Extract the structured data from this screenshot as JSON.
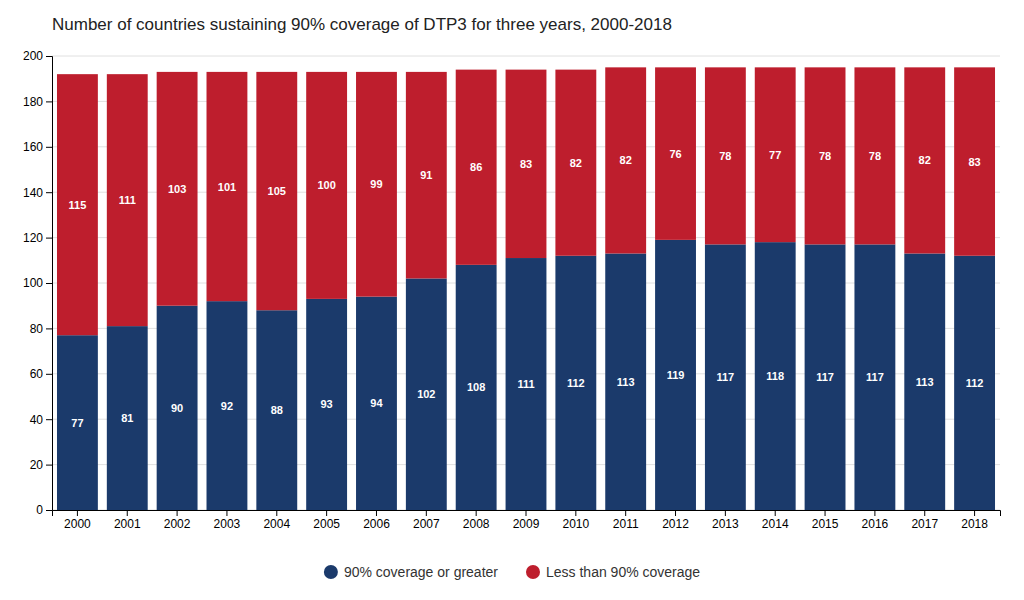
{
  "chart_data": {
    "type": "bar",
    "stacked": true,
    "title": "Number of countries sustaining 90% coverage of DTP3 for three years, 2000-2018",
    "categories": [
      "2000",
      "2001",
      "2002",
      "2003",
      "2004",
      "2005",
      "2006",
      "2007",
      "2008",
      "2009",
      "2010",
      "2011",
      "2012",
      "2013",
      "2014",
      "2015",
      "2016",
      "2017",
      "2018"
    ],
    "series": [
      {
        "name": "90% coverage or greater",
        "color": "#1b3a6b",
        "values": [
          77,
          81,
          90,
          92,
          88,
          93,
          94,
          102,
          108,
          111,
          112,
          113,
          119,
          117,
          118,
          117,
          117,
          113,
          112
        ]
      },
      {
        "name": "Less than 90% coverage",
        "color": "#be1e2d",
        "values": [
          115,
          111,
          103,
          101,
          105,
          100,
          99,
          91,
          86,
          83,
          82,
          82,
          76,
          78,
          77,
          78,
          78,
          82,
          83
        ]
      }
    ],
    "ylim": [
      0,
      200
    ],
    "yticks": [
      0,
      20,
      40,
      60,
      80,
      100,
      120,
      140,
      160,
      180,
      200
    ],
    "grid": true,
    "data_labels": true,
    "legend": "bottom"
  }
}
